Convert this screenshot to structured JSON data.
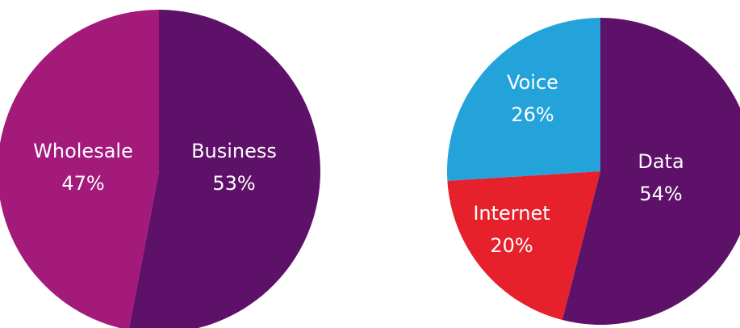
{
  "chart_data": [
    {
      "type": "pie",
      "title": "",
      "slices": [
        {
          "label": "Business",
          "percent_text": "53%",
          "value": 53,
          "color": "#5e1169"
        },
        {
          "label": "Wholesale",
          "percent_text": "47%",
          "value": 47,
          "color": "#a31a7b"
        }
      ]
    },
    {
      "type": "pie",
      "title": "",
      "slices": [
        {
          "label": "Data",
          "percent_text": "54%",
          "value": 54,
          "color": "#5e1169"
        },
        {
          "label": "Internet",
          "percent_text": "20%",
          "value": 20,
          "color": "#e6212b"
        },
        {
          "label": "Voice",
          "percent_text": "26%",
          "value": 26,
          "color": "#24a3db"
        }
      ]
    }
  ]
}
